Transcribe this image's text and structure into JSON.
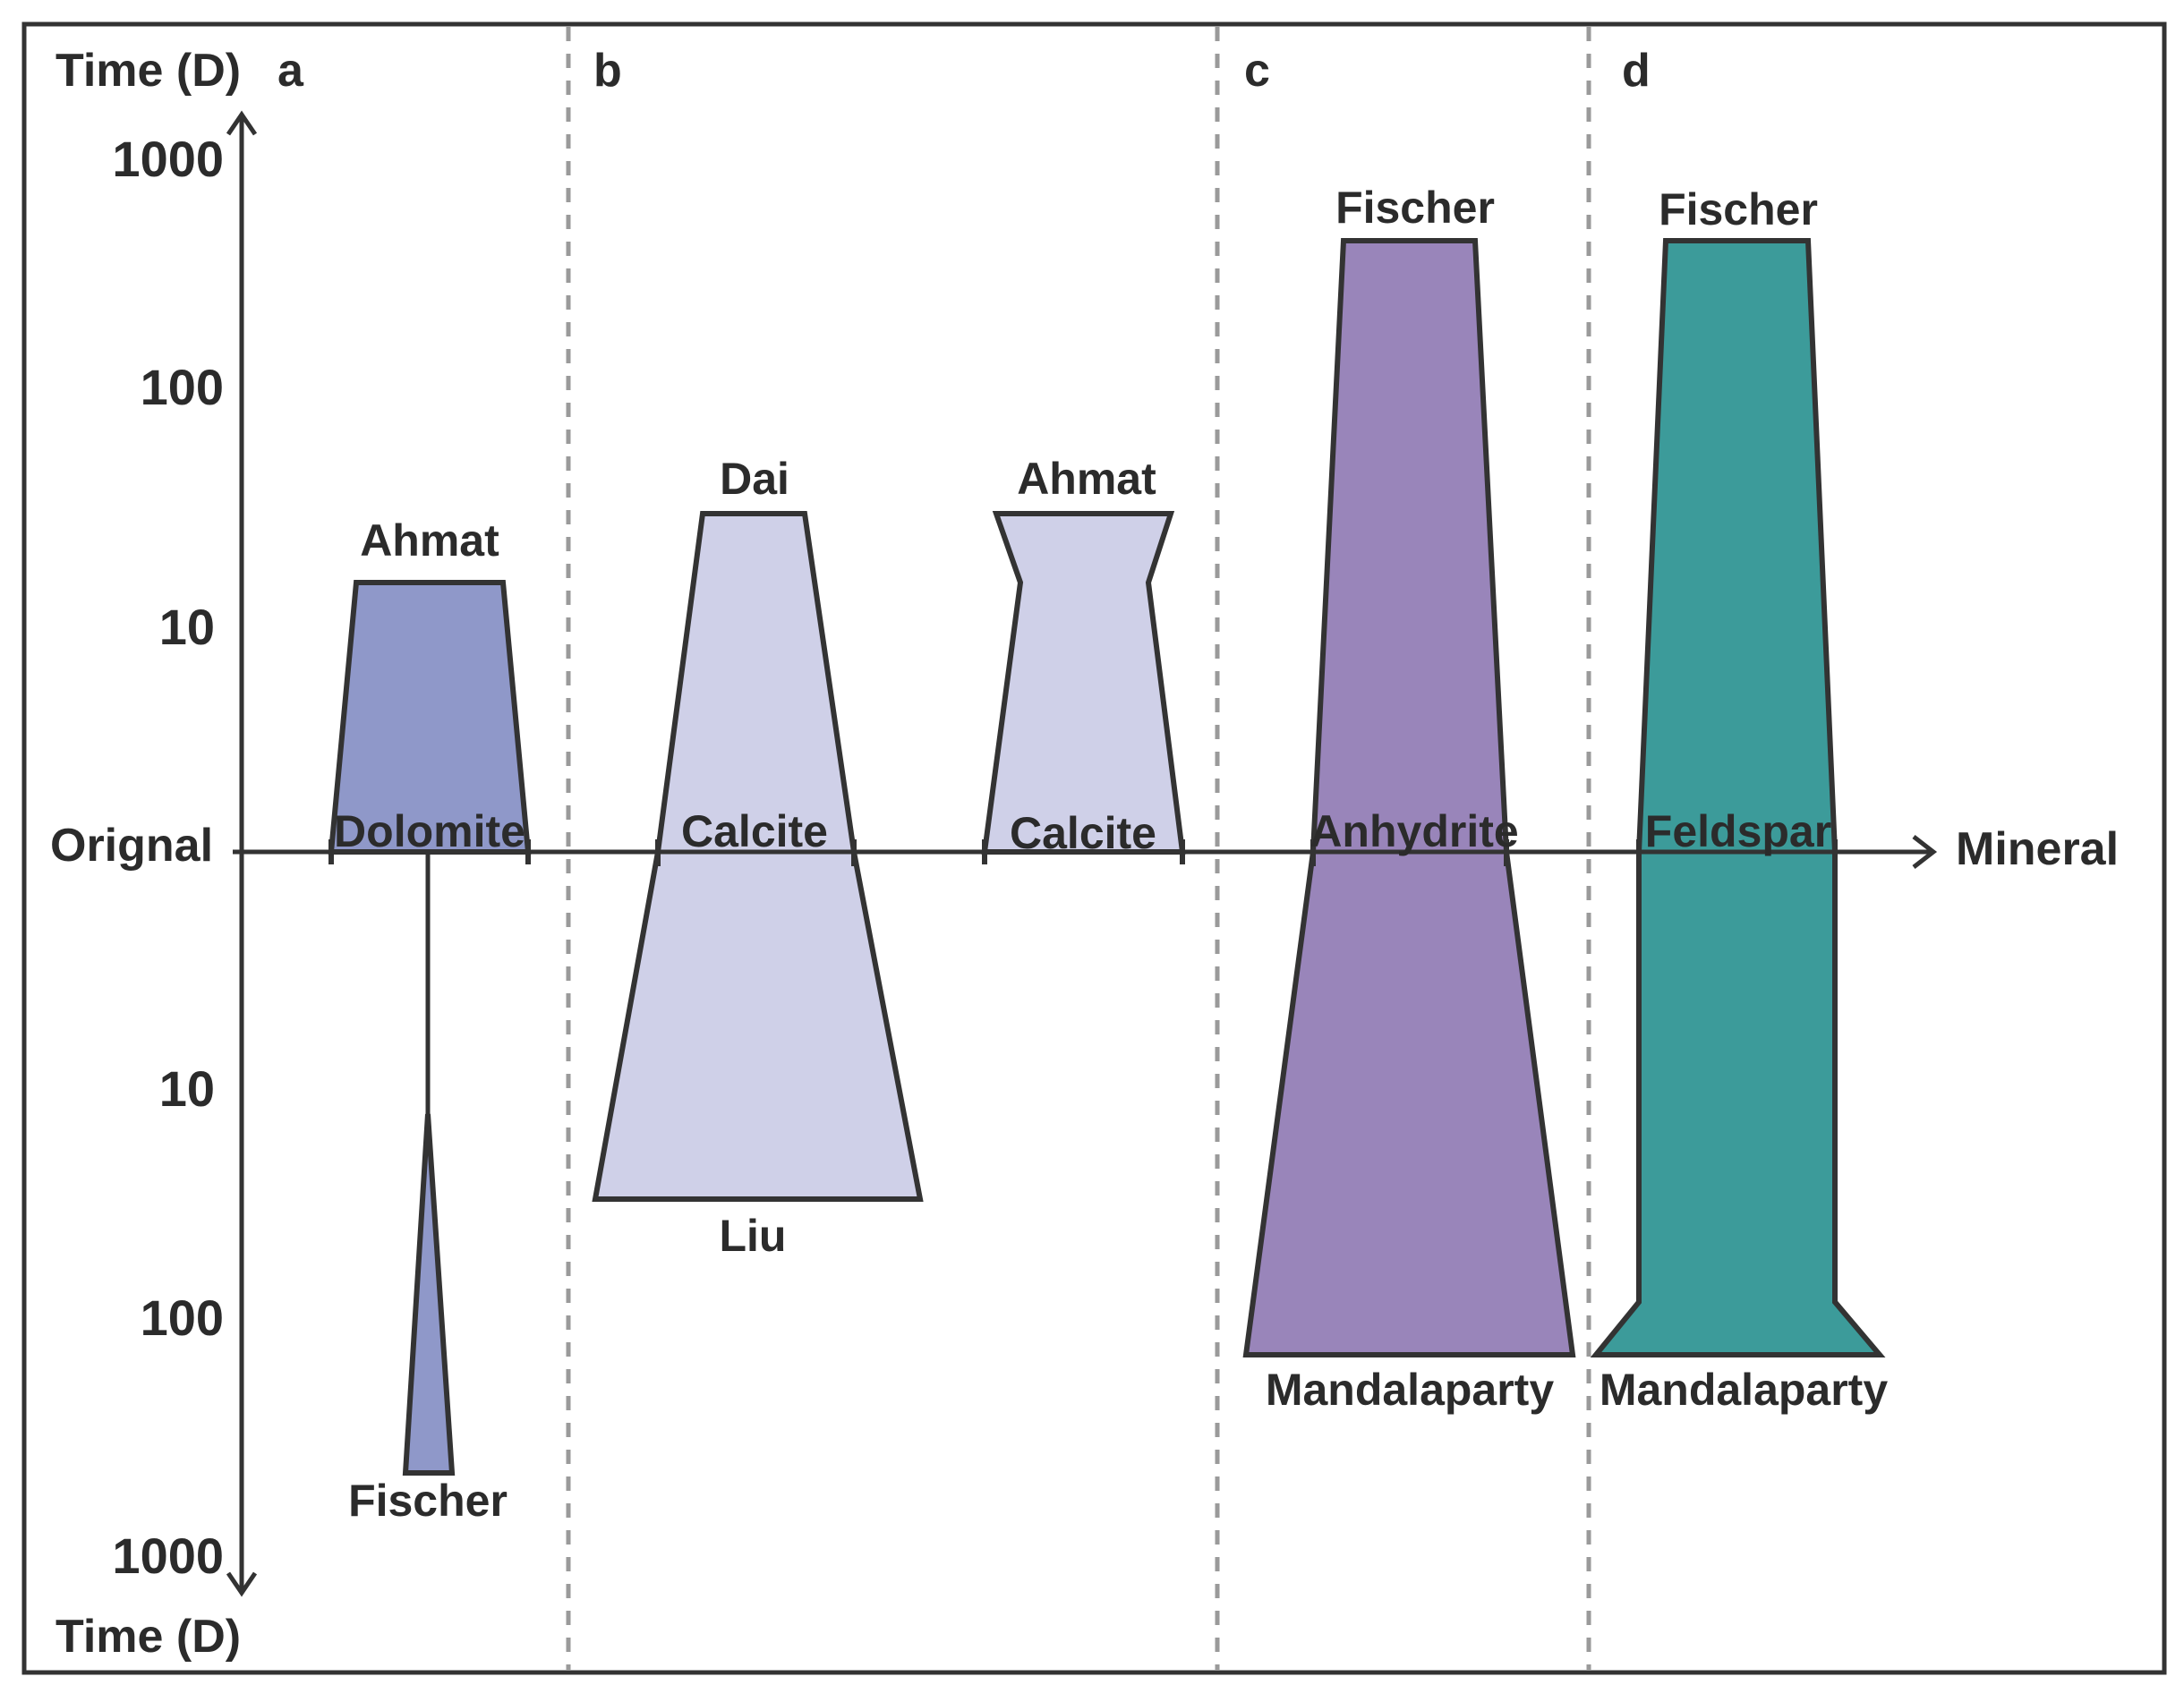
{
  "axes": {
    "y_title_top": "Time (D)",
    "y_title_bottom": "Time (D)",
    "origin_label": "Orignal",
    "x_label": "Mineral",
    "ticks_upper": [
      "1000",
      "100",
      "10"
    ],
    "ticks_lower": [
      "10",
      "100",
      "1000"
    ]
  },
  "panels": {
    "a": "a",
    "b": "b",
    "c": "c",
    "d": "d"
  },
  "minerals": {
    "dolomite": "Dolomite",
    "calcite_1": "Calcite",
    "calcite_2": "Calcite",
    "anhydrite": "Anhydrite",
    "feldspar": "Feldspar"
  },
  "authors": {
    "a_top": "Ahmat",
    "a_bottom": "Fischer",
    "b1_top": "Dai",
    "b1_bottom": "Liu",
    "b2_top": "Ahmat",
    "c_top": "Fischer",
    "c_bottom": "Mandalaparty",
    "d_top": "Fischer",
    "d_bottom": "Mandalaparty"
  },
  "colors": {
    "dolomite": "#8f98c9",
    "calcite": "#cfd0e8",
    "anhydrite": "#9985ba",
    "feldspar": "#3c9b9a",
    "outline": "#333333",
    "divider": "#9a9a9a"
  }
}
